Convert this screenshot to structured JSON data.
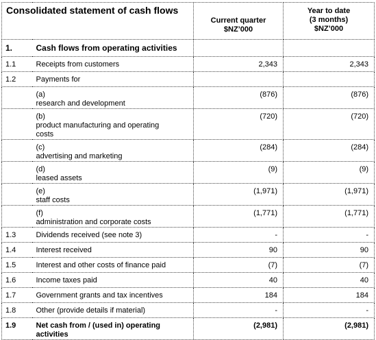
{
  "title": "Consolidated statement of cash flows",
  "columns": [
    [
      "Current quarter",
      "$NZ’000"
    ],
    [
      "Year to date",
      "(3 months)",
      "$NZ’000"
    ]
  ],
  "rows": [
    {
      "num": "1.",
      "label": "Cash flows from operating activities",
      "bold": true
    },
    {
      "num": "1.1",
      "label": "Receipts from customers",
      "current": "2,343",
      "ytd": "2,343"
    },
    {
      "num": "1.2",
      "label": "Payments for"
    },
    {
      "item": "(a)",
      "label": "research and development",
      "current": "(876)",
      "ytd": "(876)"
    },
    {
      "item": "(b)",
      "label": "product manufacturing and operating costs",
      "current": "(720)",
      "ytd": "(720)"
    },
    {
      "item": "(c)",
      "label": "advertising and marketing",
      "current": "(284)",
      "ytd": "(284)"
    },
    {
      "item": "(d)",
      "label": "leased assets",
      "current": "(9)",
      "ytd": "(9)"
    },
    {
      "item": "(e)",
      "label": "staff costs",
      "current": "(1,971)",
      "ytd": "(1,971)"
    },
    {
      "item": "(f)",
      "label": "administration and corporate costs",
      "current": "(1,771)",
      "ytd": "(1,771)"
    },
    {
      "num": "1.3",
      "label": "Dividends received (see note 3)",
      "current": "-",
      "ytd": "-"
    },
    {
      "num": "1.4",
      "label": "Interest received",
      "current": "90",
      "ytd": "90"
    },
    {
      "num": "1.5",
      "label": "Interest and other costs of finance paid",
      "current": "(7)",
      "ytd": "(7)"
    },
    {
      "num": "1.6",
      "label": "Income taxes paid",
      "current": "40",
      "ytd": "40"
    },
    {
      "num": "1.7",
      "label": "Government grants and tax incentives",
      "current": "184",
      "ytd": "184"
    },
    {
      "num": "1.8",
      "label": "Other (provide details if material)",
      "current": "-",
      "ytd": "-"
    },
    {
      "num": "1.9",
      "label": "Net cash from / (used in) operating activities",
      "current": "(2,981)",
      "ytd": "(2,981)",
      "bold": true
    }
  ]
}
